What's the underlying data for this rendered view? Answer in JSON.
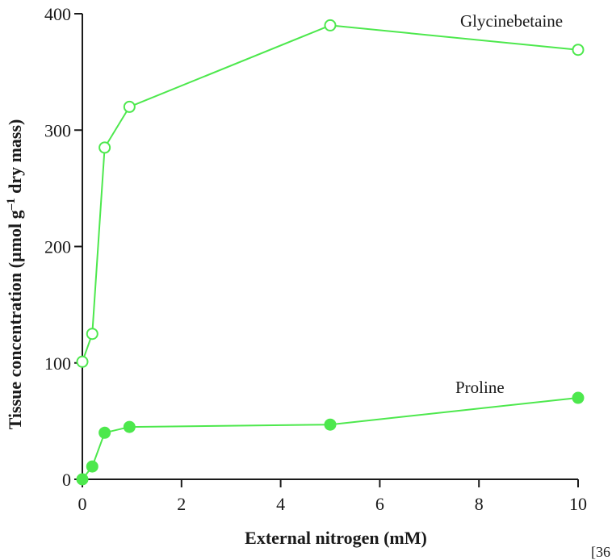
{
  "chart_data": {
    "type": "line",
    "xlabel": "External nitrogen (mM)",
    "ylabel_main": "Tissue concentration (µmol g",
    "ylabel_sup": "–1",
    "ylabel_tail": " dry mass)",
    "xlim": [
      0,
      10
    ],
    "ylim": [
      0,
      400
    ],
    "x_ticks": [
      0,
      2,
      4,
      6,
      8,
      10
    ],
    "y_ticks": [
      0,
      100,
      200,
      300,
      400
    ],
    "grid": false,
    "line_color": "#4de84d",
    "series": [
      {
        "name": "Glycinebetaine",
        "marker": "open-circle",
        "x": [
          0,
          0.2,
          0.45,
          0.95,
          5,
          10
        ],
        "y": [
          101,
          125,
          285,
          320,
          390,
          369
        ]
      },
      {
        "name": "Proline",
        "marker": "filled-circle",
        "x": [
          0,
          0.2,
          0.45,
          0.95,
          5,
          10
        ],
        "y": [
          0,
          11,
          40,
          45,
          47,
          70
        ]
      }
    ]
  },
  "corner_note": "[36"
}
